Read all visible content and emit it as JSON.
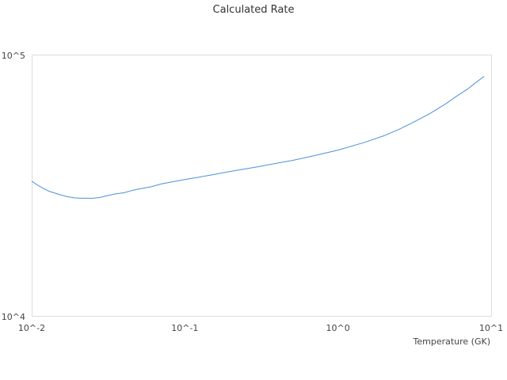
{
  "chart_data": {
    "type": "line",
    "title": "Calculated Rate",
    "xlabel": "Temperature (GK)",
    "ylabel": "",
    "x_scale": "log",
    "y_scale": "log",
    "xlim": [
      0.01,
      10
    ],
    "ylim": [
      10000,
      100000
    ],
    "x_ticks": [
      {
        "value": 0.01,
        "label": "10^-2"
      },
      {
        "value": 0.1,
        "label": "10^-1"
      },
      {
        "value": 1,
        "label": "10^0"
      },
      {
        "value": 10,
        "label": "10^1"
      }
    ],
    "y_ticks": [
      {
        "value": 10000,
        "label": "10^4"
      },
      {
        "value": 100000,
        "label": "10^5"
      }
    ],
    "grid": false,
    "legend": "none",
    "colors": {
      "series": "#4a90d9",
      "frame": "#dddddd"
    },
    "series": [
      {
        "x": [
          0.01,
          0.011,
          0.012,
          0.013,
          0.015,
          0.017,
          0.019,
          0.021,
          0.023,
          0.025,
          0.028,
          0.03,
          0.035,
          0.04,
          0.045,
          0.05,
          0.06,
          0.07,
          0.08,
          0.1,
          0.12,
          0.15,
          0.2,
          0.25,
          0.3,
          0.4,
          0.5,
          0.6,
          0.8,
          1.0,
          1.5,
          2.0,
          2.5,
          3.0,
          4.0,
          5.0,
          6.0,
          7.0,
          8.0,
          9.0
        ],
        "y": [
          33000,
          31800,
          30900,
          30200,
          29400,
          28800,
          28500,
          28400,
          28400,
          28400,
          28600,
          28900,
          29500,
          29800,
          30400,
          30800,
          31400,
          32200,
          32700,
          33500,
          34100,
          34900,
          36000,
          36800,
          37500,
          38700,
          39600,
          40500,
          42100,
          43400,
          46500,
          49300,
          52100,
          54900,
          60000,
          65000,
          70000,
          74300,
          79000,
          83200
        ]
      }
    ]
  }
}
